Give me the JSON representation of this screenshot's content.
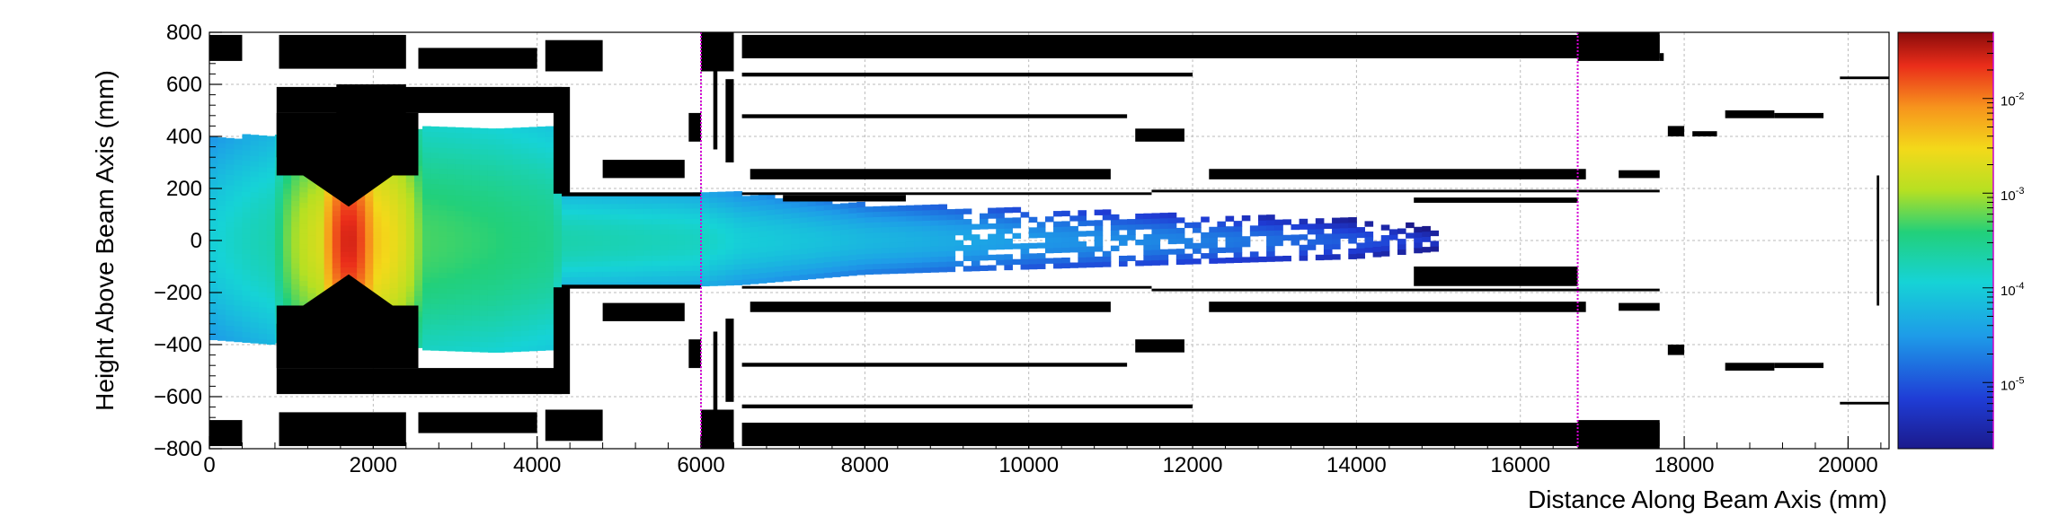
{
  "chart_data": {
    "type": "heatmap",
    "xlabel": "Distance Along Beam Axis (mm)",
    "ylabel": "Height Above Beam Axis (mm)",
    "xlim": [
      0,
      20500
    ],
    "ylim": [
      -800,
      800
    ],
    "x_ticks": [
      0,
      2000,
      4000,
      6000,
      8000,
      10000,
      12000,
      14000,
      16000,
      18000,
      20000
    ],
    "x_tick_labels": [
      "0",
      "2000",
      "4000",
      "6000",
      "8000",
      "10000",
      "12000",
      "14000",
      "16000",
      "18000",
      "20000"
    ],
    "y_ticks": [
      -800,
      -600,
      -400,
      -200,
      0,
      200,
      400,
      600,
      800
    ],
    "y_tick_labels": [
      "−800",
      "−600",
      "−400",
      "−200",
      "0",
      "200",
      "400",
      "600",
      "800"
    ],
    "grid": true,
    "colorbar": {
      "scale": "log",
      "min": 2e-06,
      "max": 0.05,
      "labels": [
        {
          "value": 0.01,
          "mantissa": "10",
          "exponent": "-2"
        },
        {
          "value": 0.001,
          "mantissa": "10",
          "exponent": "-3"
        },
        {
          "value": 0.0001,
          "mantissa": "10",
          "exponent": "-4"
        },
        {
          "value": 1e-05,
          "mantissa": "10",
          "exponent": "-5"
        }
      ]
    },
    "density_profile": {
      "description_free": true,
      "x": [
        0,
        800,
        1400,
        1700,
        2000,
        2600,
        3500,
        4200,
        4300,
        6000,
        6500,
        8000,
        10000,
        12000,
        14000,
        15000
      ],
      "value": [
        0.0001,
        0.0002,
        0.002,
        0.03,
        0.004,
        0.0005,
        0.0004,
        0.0003,
        0.0002,
        0.00015,
        0.0001,
        6e-05,
        3e-05,
        2e-05,
        1e-05,
        5e-06
      ],
      "half_width_mm": [
        380,
        400,
        320,
        250,
        320,
        420,
        430,
        420,
        180,
        175,
        170,
        130,
        110,
        90,
        70,
        40
      ]
    },
    "magenta_markers_x": [
      6000,
      16700
    ],
    "structures": [
      {
        "x": [
          0,
          400
        ],
        "y": [
          690,
          790
        ]
      },
      {
        "x": [
          0,
          400
        ],
        "y": [
          -790,
          -690
        ]
      },
      {
        "x": [
          850,
          2400
        ],
        "y": [
          660,
          790
        ]
      },
      {
        "x": [
          850,
          2400
        ],
        "y": [
          -790,
          -660
        ]
      },
      {
        "x": [
          2550,
          4000
        ],
        "y": [
          660,
          740
        ]
      },
      {
        "x": [
          2550,
          4000
        ],
        "y": [
          -740,
          -660
        ]
      },
      {
        "x": [
          4100,
          4800
        ],
        "y": [
          650,
          770
        ]
      },
      {
        "x": [
          4100,
          4800
        ],
        "y": [
          -770,
          -650
        ]
      },
      {
        "x": [
          6000,
          6400
        ],
        "y": [
          650,
          800
        ]
      },
      {
        "x": [
          6000,
          6400
        ],
        "y": [
          -800,
          -650
        ]
      },
      {
        "x": [
          6500,
          17700
        ],
        "y": [
          700,
          790
        ]
      },
      {
        "x": [
          6500,
          17700
        ],
        "y": [
          -790,
          -700
        ]
      },
      {
        "x": [
          17700,
          17750
        ],
        "y": [
          690,
          720
        ]
      },
      {
        "x": [
          1550,
          2400
        ],
        "y": [
          450,
          600
        ]
      },
      {
        "x": [
          820,
          4300
        ],
        "y": [
          490,
          590
        ]
      },
      {
        "x": [
          820,
          4300
        ],
        "y": [
          -590,
          -490
        ]
      },
      {
        "x": [
          820,
          2550
        ],
        "y": [
          -490,
          -250
        ]
      },
      {
        "x": [
          820,
          2550
        ],
        "y": [
          250,
          490
        ]
      },
      {
        "x": [
          4200,
          4400
        ],
        "y": [
          180,
          590
        ]
      },
      {
        "x": [
          4200,
          4400
        ],
        "y": [
          -590,
          -180
        ]
      },
      {
        "x": [
          4300,
          6000
        ],
        "y": [
          170,
          185
        ]
      },
      {
        "x": [
          4300,
          6000
        ],
        "y": [
          -185,
          -170
        ]
      },
      {
        "x": [
          4800,
          5800
        ],
        "y": [
          240,
          310
        ]
      },
      {
        "x": [
          4800,
          5800
        ],
        "y": [
          -310,
          -240
        ]
      },
      {
        "x": [
          5850,
          6000
        ],
        "y": [
          380,
          490
        ]
      },
      {
        "x": [
          5850,
          6000
        ],
        "y": [
          -490,
          -380
        ]
      },
      {
        "x": [
          6150,
          6200
        ],
        "y": [
          350,
          650
        ]
      },
      {
        "x": [
          6150,
          6200
        ],
        "y": [
          -650,
          -350
        ]
      },
      {
        "x": [
          6300,
          6400
        ],
        "y": [
          300,
          620
        ]
      },
      {
        "x": [
          6300,
          6400
        ],
        "y": [
          -620,
          -300
        ]
      },
      {
        "x": [
          6500,
          12000
        ],
        "y": [
          630,
          645
        ]
      },
      {
        "x": [
          6500,
          12000
        ],
        "y": [
          -645,
          -630
        ]
      },
      {
        "x": [
          6500,
          11200
        ],
        "y": [
          470,
          485
        ]
      },
      {
        "x": [
          6500,
          11200
        ],
        "y": [
          -485,
          -470
        ]
      },
      {
        "x": [
          11300,
          11900
        ],
        "y": [
          380,
          430
        ]
      },
      {
        "x": [
          11300,
          11900
        ],
        "y": [
          -430,
          -380
        ]
      },
      {
        "x": [
          6600,
          11000
        ],
        "y": [
          235,
          275
        ]
      },
      {
        "x": [
          6600,
          11000
        ],
        "y": [
          -275,
          -235
        ]
      },
      {
        "x": [
          12200,
          16800
        ],
        "y": [
          235,
          275
        ]
      },
      {
        "x": [
          12200,
          16800
        ],
        "y": [
          -275,
          -235
        ]
      },
      {
        "x": [
          6500,
          11500
        ],
        "y": [
          175,
          185
        ]
      },
      {
        "x": [
          6500,
          11500
        ],
        "y": [
          -185,
          -175
        ]
      },
      {
        "x": [
          11500,
          17700
        ],
        "y": [
          185,
          195
        ]
      },
      {
        "x": [
          11500,
          17700
        ],
        "y": [
          -195,
          -185
        ]
      },
      {
        "x": [
          7000,
          8500
        ],
        "y": [
          150,
          175
        ]
      },
      {
        "x": [
          14700,
          16700
        ],
        "y": [
          -175,
          -100
        ]
      },
      {
        "x": [
          14700,
          16700
        ],
        "y": [
          145,
          165
        ]
      },
      {
        "x": [
          17200,
          17700
        ],
        "y": [
          240,
          270
        ]
      },
      {
        "x": [
          17200,
          17700
        ],
        "y": [
          -270,
          -240
        ]
      },
      {
        "x": [
          16700,
          17700
        ],
        "y": [
          -800,
          -690
        ]
      },
      {
        "x": [
          16700,
          17700
        ],
        "y": [
          690,
          800
        ]
      },
      {
        "x": [
          17800,
          18000
        ],
        "y": [
          400,
          440
        ]
      },
      {
        "x": [
          17800,
          18000
        ],
        "y": [
          -440,
          -400
        ]
      },
      {
        "x": [
          18100,
          18400
        ],
        "y": [
          400,
          420
        ]
      },
      {
        "x": [
          18500,
          19100
        ],
        "y": [
          470,
          500
        ]
      },
      {
        "x": [
          18500,
          19100
        ],
        "y": [
          -500,
          -470
        ]
      },
      {
        "x": [
          19100,
          19700
        ],
        "y": [
          470,
          490
        ]
      },
      {
        "x": [
          19100,
          19700
        ],
        "y": [
          -490,
          -470
        ]
      },
      {
        "x": [
          19900,
          20500
        ],
        "y": [
          620,
          630
        ]
      },
      {
        "x": [
          19900,
          20500
        ],
        "y": [
          -630,
          -620
        ]
      },
      {
        "x": [
          20350,
          20380
        ],
        "y": [
          -250,
          250
        ]
      }
    ]
  }
}
